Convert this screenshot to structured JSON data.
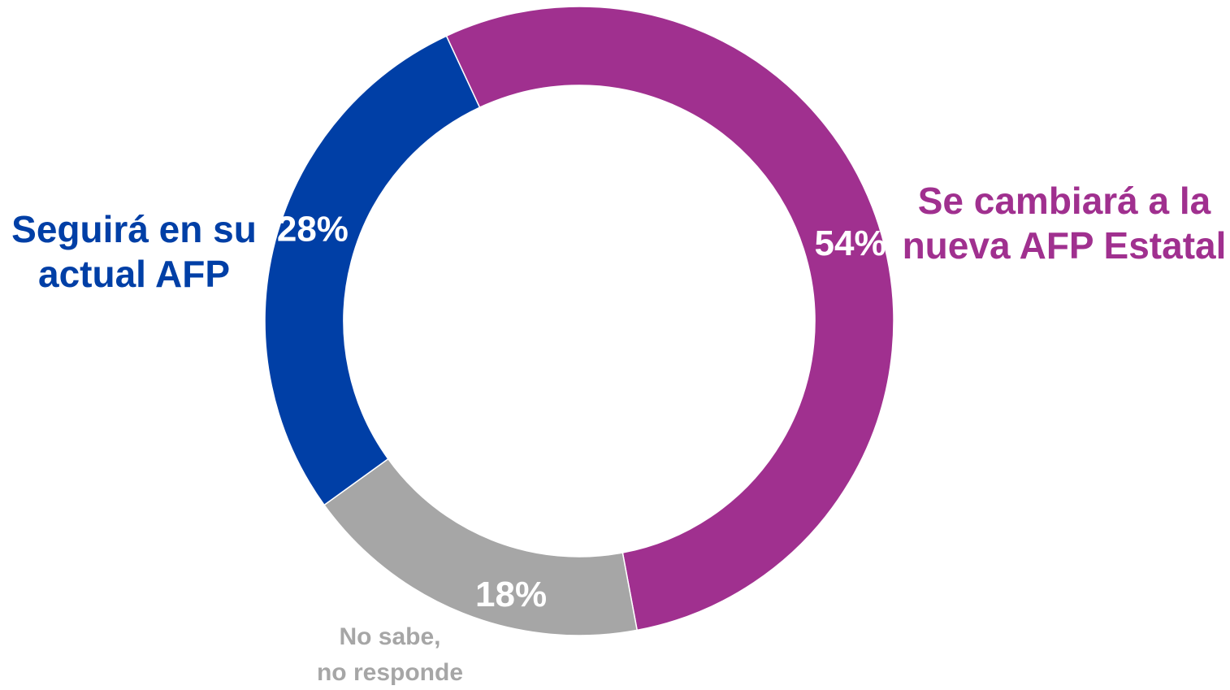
{
  "chart_data": {
    "type": "pie",
    "donut": true,
    "segments": [
      {
        "label_lines": [
          "Se cambiará a la",
          "nueva AFP Estatal"
        ],
        "value": 54,
        "value_label": "54%",
        "color": "#A0308F"
      },
      {
        "label_lines": [
          "No sabe,",
          "no responde"
        ],
        "value": 18,
        "value_label": "18%",
        "color": "#A6A6A6"
      },
      {
        "label_lines": [
          "Seguirá en su",
          "actual AFP"
        ],
        "value": 28,
        "value_label": "28%",
        "color": "#003FA6"
      }
    ]
  }
}
